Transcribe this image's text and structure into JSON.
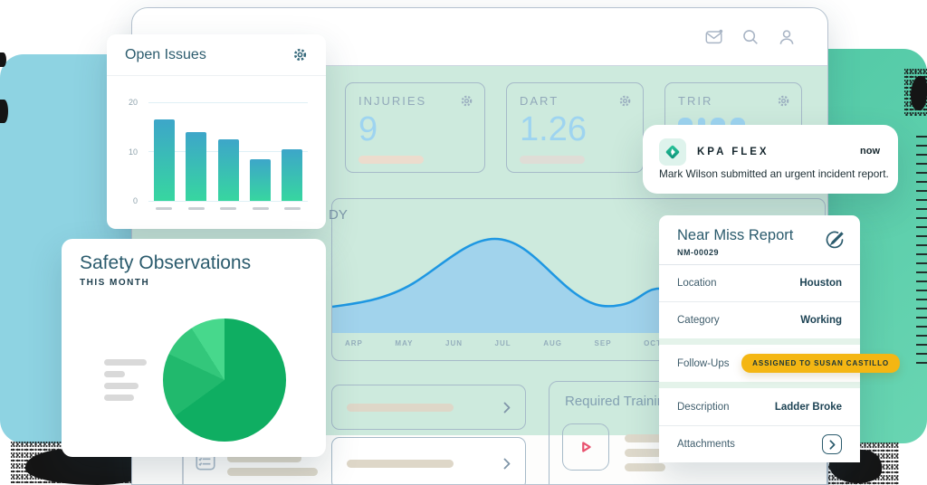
{
  "colors": {
    "left_shape": "#8ed3e2",
    "right_a": "#48c4a1",
    "right_b": "#69d5b2",
    "mint": "#cdeadd",
    "window_border": "#b5c1cf",
    "card_border": "#a6bac9",
    "muted": "#92a9ba",
    "number": "#9ed4f0",
    "area": "#a1d3ec",
    "line": "#1e97e2",
    "teal_dark": "#2b5b6d",
    "bar_top": "#3da6c9",
    "bar_bottom": "#37d6a0",
    "pill_bg": "#f4b613",
    "pill_text": "#17343c",
    "play": "#e8536f",
    "tan": "#ded7c8",
    "gray_bar": "#d9d9d9",
    "ink": "#16272e"
  },
  "topbar": {
    "icons": [
      "mail",
      "search",
      "user"
    ]
  },
  "metrics": [
    {
      "label": "INJURIES",
      "value": "9"
    },
    {
      "label": "DART",
      "value": "1.26"
    },
    {
      "label": "TRIR",
      "value": "",
      "value_hidden_behind_notification": true
    }
  ],
  "open_issues": {
    "title": "Open Issues",
    "chart_data": {
      "type": "bar",
      "values": [
        16.5,
        14,
        12.5,
        8.5,
        10.5
      ],
      "ylim": [
        0,
        20
      ],
      "yticks": [
        20,
        10,
        0
      ],
      "category_labels": "placeholder dashes (no text)"
    }
  },
  "trend_chart": {
    "visible_title_fragment": "DY",
    "chart_data": {
      "type": "area",
      "x": [
        "ARP",
        "MAY",
        "JUN",
        "JUL",
        "AUG",
        "SEP",
        "OCT"
      ],
      "y_axis": "unlabeled decorative wave",
      "shape": "single large hump peaking between JUN and JUL, small secondary rise near OCT"
    }
  },
  "safety_observations": {
    "title": "Safety Observations",
    "subtitle": "THIS MONTH",
    "chart_data": {
      "type": "pie",
      "slices": [
        {
          "value": 65,
          "color": "#0fae62"
        },
        {
          "value": 17,
          "color": "#21b96d"
        },
        {
          "value": 9,
          "color": "#33c77b"
        },
        {
          "value": 9,
          "color": "#47d88c"
        }
      ],
      "legend": "gray placeholder bars (no text)"
    }
  },
  "notification": {
    "app": "KPA FLEX",
    "time": "now",
    "message": "Mark Wilson submitted an urgent incident report."
  },
  "near_miss": {
    "title": "Near Miss Report",
    "report_id": "NM-00029",
    "rows": [
      {
        "label": "Location",
        "value": "Houston"
      },
      {
        "label": "Category",
        "value": "Working"
      },
      {
        "label": "Follow-Ups",
        "badge": "ASSIGNED TO SUSAN CASTILLO"
      },
      {
        "label": "Description",
        "value": "Ladder Broke"
      },
      {
        "label": "Attachments",
        "value": ""
      }
    ]
  },
  "required_training": {
    "title": "Required Training"
  }
}
